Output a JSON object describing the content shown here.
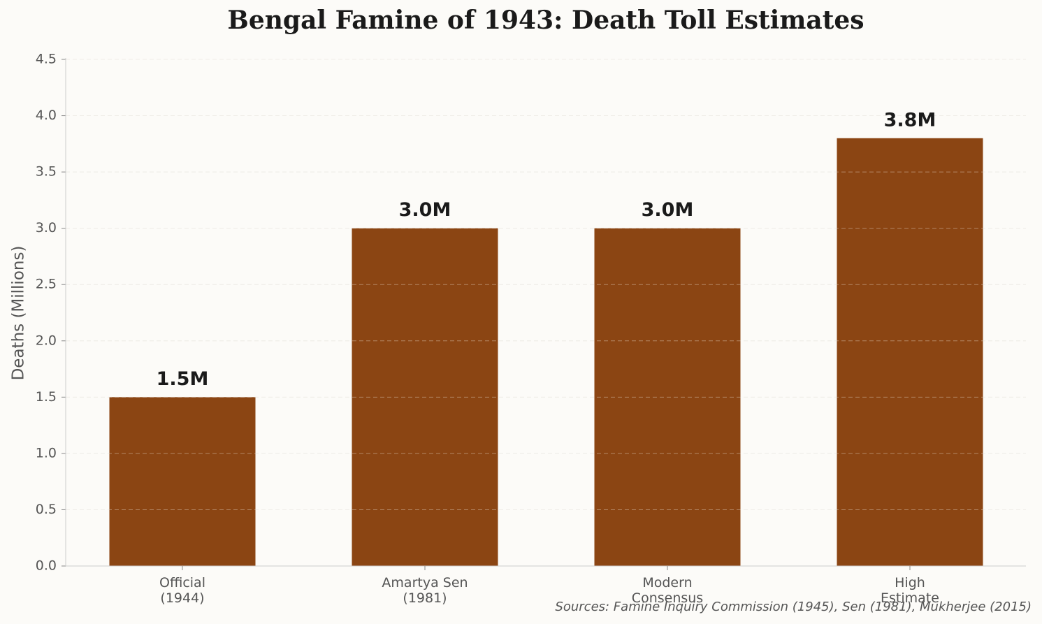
{
  "chart_data": {
    "type": "bar",
    "title": "Bengal Famine of 1943: Death Toll Estimates",
    "y_label": "Deaths (Millions)",
    "categories": [
      "Official\n(1944)",
      "Amartya Sen\n(1981)",
      "Modern\nConsensus",
      "High\nEstimate"
    ],
    "values": [
      1.5,
      3.0,
      3.0,
      3.8
    ],
    "value_labels": [
      "1.5M",
      "3.0M",
      "3.0M",
      "3.8M"
    ],
    "color": "#8b4513",
    "ylim": [
      0,
      4.5
    ],
    "yticks": [
      {
        "value": 0,
        "label": "0.0"
      },
      {
        "value": 0.5,
        "label": "0.5"
      },
      {
        "value": 1,
        "label": "1.0"
      },
      {
        "value": 1.5,
        "label": "1.5"
      },
      {
        "value": 2,
        "label": "2.0"
      },
      {
        "value": 2.5,
        "label": "2.5"
      },
      {
        "value": 3,
        "label": "3.0"
      },
      {
        "value": 3.5,
        "label": "3.5"
      },
      {
        "value": 4,
        "label": "4.0"
      },
      {
        "value": 4.5,
        "label": "4.5"
      }
    ],
    "grid": true,
    "source": "Sources: Famine Inquiry Commission (1945), Sen (1981), Mukherjee (2015)"
  }
}
